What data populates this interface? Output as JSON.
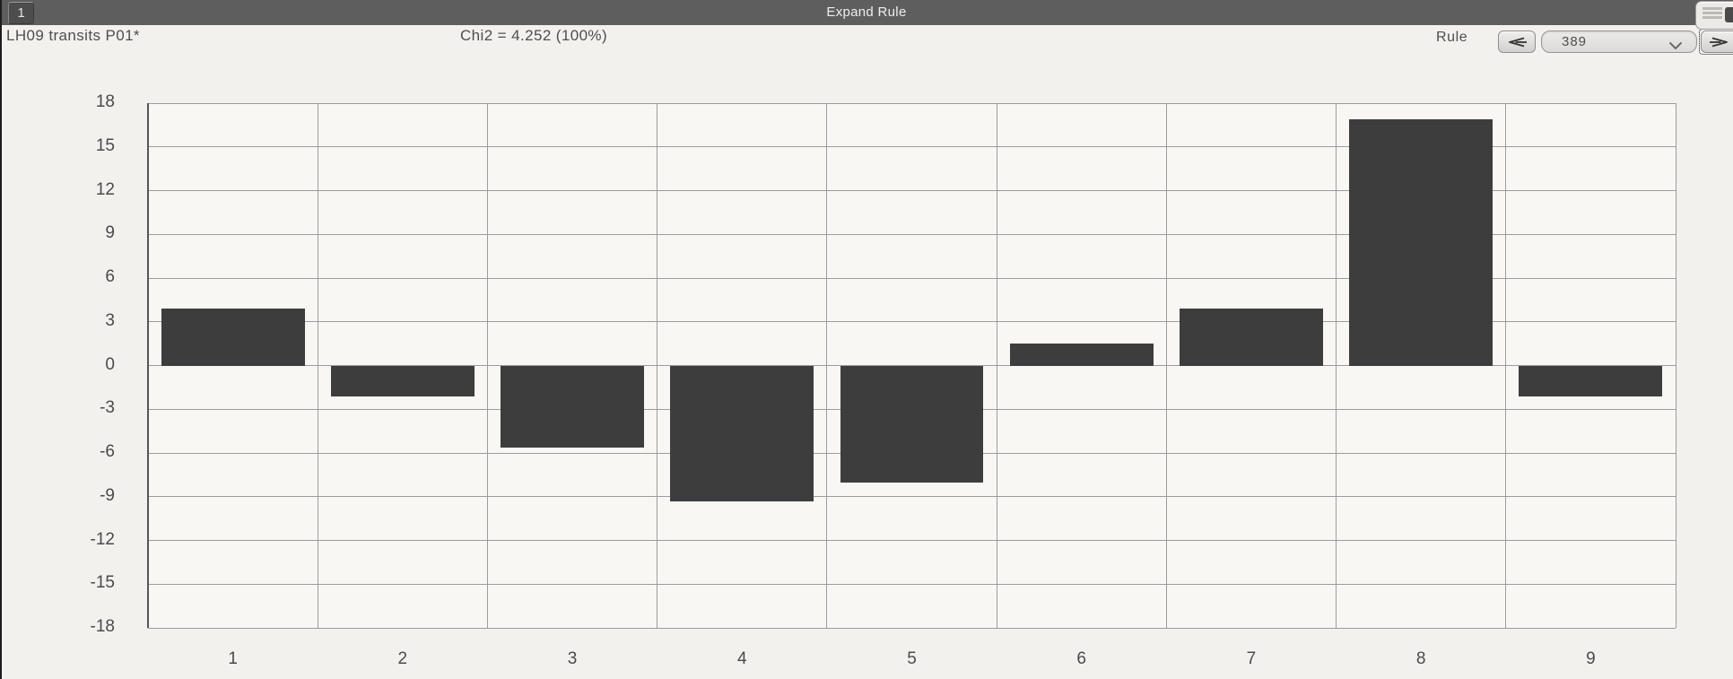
{
  "window": {
    "title": "Expand Rule",
    "tab_button_label": "1"
  },
  "header": {
    "dataset_label": "LH09 transits P01*",
    "chi2_label": "Chi2 = 4.252 (100%)"
  },
  "rule_nav": {
    "label": "Rule",
    "current_value": "389",
    "prev_icon": "left-arrow-icon",
    "next_icon": "right-arrow-icon",
    "chevron_icon": "chevron-down-icon"
  },
  "colors": {
    "titlebar": "#5e5e5e",
    "page_background": "#f2f1ee",
    "plot_background": "#f8f7f4",
    "bar": "#3d3d3d",
    "gridline": "#9c9c9c",
    "axis": "#565656",
    "text": "#4a4a4a"
  },
  "chart_data": {
    "type": "bar",
    "categories": [
      "1",
      "2",
      "3",
      "4",
      "5",
      "6",
      "7",
      "8",
      "9"
    ],
    "values": [
      3.9,
      -2.1,
      -5.6,
      -9.3,
      -8.0,
      1.5,
      3.9,
      16.9,
      -2.1
    ],
    "title": "",
    "xlabel": "",
    "ylabel": "",
    "ylim": [
      -18,
      18
    ],
    "ytick_step": 3,
    "grid": true,
    "legend": "none",
    "bar_color": "#3d3d3d"
  }
}
